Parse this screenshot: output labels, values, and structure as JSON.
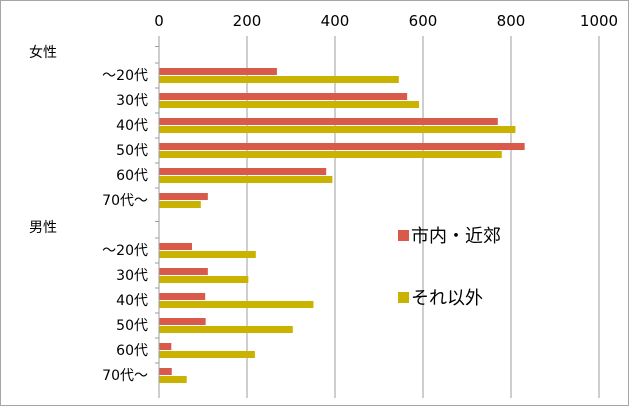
{
  "chart_data": {
    "type": "bar",
    "orientation": "horizontal",
    "xlim": [
      0,
      1000
    ],
    "xticks": [
      "0",
      "200",
      "400",
      "600",
      "800",
      "1000"
    ],
    "grid": true,
    "legend_position": "right",
    "groups": [
      {
        "label": "女性",
        "categories": [
          "～20代",
          "30代",
          "40代",
          "50代",
          "60代",
          "70代～"
        ]
      },
      {
        "label": "男性",
        "categories": [
          "～20代",
          "30代",
          "40代",
          "50代",
          "60代",
          "70代～"
        ]
      }
    ],
    "series": [
      {
        "name": "市内・近郊",
        "color": "#D9594A",
        "values": [
          268,
          564,
          770,
          831,
          380,
          111,
          75,
          111,
          105,
          106,
          28,
          29
        ]
      },
      {
        "name": "それ以外",
        "color": "#C9B200",
        "values": [
          545,
          591,
          810,
          779,
          394,
          95,
          220,
          203,
          351,
          304,
          218,
          63
        ]
      }
    ]
  }
}
